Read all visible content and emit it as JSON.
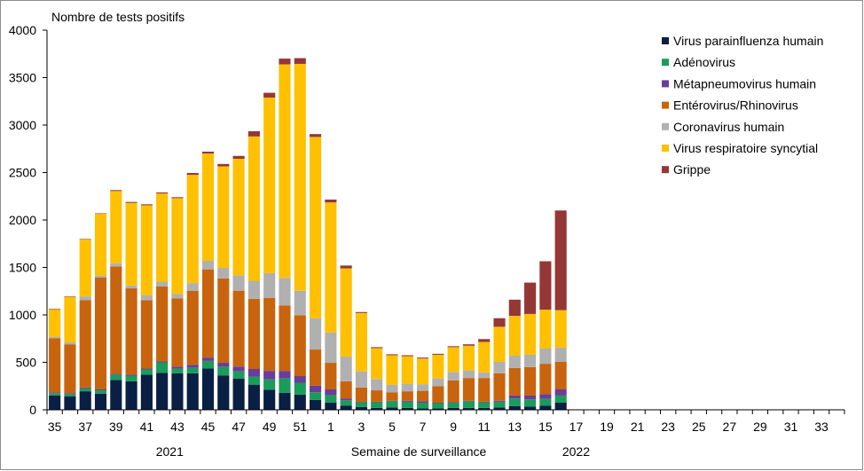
{
  "chart_data": {
    "type": "bar",
    "stacked": true,
    "ylabel": "Nombre de tests positifs",
    "xlabel": "Semaine de surveillance",
    "ylim": [
      0,
      4000
    ],
    "yticks": [
      "0",
      "500",
      "1000",
      "1500",
      "2000",
      "2500",
      "3000",
      "3500",
      "4000"
    ],
    "weeks": [
      "35",
      "36",
      "37",
      "38",
      "39",
      "40",
      "41",
      "42",
      "43",
      "44",
      "45",
      "46",
      "47",
      "48",
      "49",
      "50",
      "51",
      "52",
      "1",
      "2",
      "3",
      "4",
      "5",
      "6",
      "7",
      "8",
      "9",
      "10",
      "11",
      "12",
      "13",
      "14",
      "15",
      "16",
      "17",
      "18",
      "19",
      "20",
      "21",
      "22",
      "23",
      "24",
      "25",
      "26",
      "27",
      "28",
      "29",
      "30",
      "31",
      "32",
      "33",
      "34"
    ],
    "xtick_labels": [
      "35",
      "37",
      "39",
      "41",
      "43",
      "45",
      "47",
      "49",
      "51",
      "1",
      "3",
      "5",
      "7",
      "9",
      "11",
      "13",
      "15",
      "17",
      "19",
      "21",
      "23",
      "25",
      "27",
      "29",
      "31",
      "33"
    ],
    "year_labels": [
      {
        "text": "2021",
        "at_week_index": 7.5
      },
      {
        "text": "2022",
        "at_week_index": 34
      }
    ],
    "legend_position": "top-right",
    "grid": false,
    "series": [
      {
        "name": "Virus parainfluenza humain",
        "color": "#0a1f44",
        "values": [
          150,
          140,
          195,
          170,
          315,
          300,
          370,
          390,
          385,
          385,
          435,
          360,
          330,
          265,
          210,
          180,
          160,
          105,
          75,
          45,
          30,
          20,
          25,
          20,
          15,
          15,
          20,
          20,
          20,
          25,
          40,
          35,
          45,
          75
        ]
      },
      {
        "name": "Adénovirus",
        "color": "#1a9c5a",
        "values": [
          25,
          25,
          30,
          35,
          55,
          60,
          55,
          110,
          50,
          60,
          80,
          95,
          75,
          85,
          110,
          150,
          125,
          80,
          80,
          55,
          50,
          60,
          65,
          65,
          60,
          55,
          55,
          70,
          60,
          60,
          80,
          75,
          70,
          75
        ]
      },
      {
        "name": "Métapneumovirus humain",
        "color": "#6a3d9a",
        "values": [
          10,
          10,
          10,
          10,
          10,
          10,
          10,
          10,
          20,
          30,
          35,
          40,
          50,
          80,
          90,
          80,
          70,
          70,
          60,
          20,
          5,
          5,
          5,
          10,
          15,
          5,
          5,
          5,
          5,
          10,
          30,
          40,
          50,
          65
        ]
      },
      {
        "name": "Entérovirus/Rhinovirus",
        "color": "#c8640e",
        "values": [
          570,
          515,
          920,
          1180,
          1130,
          910,
          720,
          790,
          720,
          780,
          930,
          890,
          800,
          740,
          770,
          690,
          640,
          380,
          280,
          180,
          150,
          120,
          90,
          100,
          110,
          175,
          230,
          240,
          250,
          290,
          290,
          300,
          320,
          290
        ]
      },
      {
        "name": "Coronavirus humain",
        "color": "#b0b0b0",
        "values": [
          15,
          20,
          40,
          20,
          35,
          30,
          50,
          50,
          45,
          80,
          90,
          110,
          160,
          190,
          260,
          290,
          260,
          330,
          320,
          260,
          170,
          120,
          80,
          80,
          70,
          80,
          90,
          80,
          60,
          120,
          130,
          130,
          160,
          150
        ]
      },
      {
        "name": "Virus respiratoire syncytial",
        "color": "#ffc000",
        "values": [
          290,
          480,
          600,
          650,
          760,
          870,
          950,
          930,
          1010,
          1140,
          1130,
          1070,
          1230,
          1520,
          1850,
          2250,
          2390,
          1910,
          1370,
          930,
          615,
          325,
          310,
          290,
          270,
          250,
          260,
          260,
          320,
          370,
          420,
          430,
          410,
          395
        ]
      },
      {
        "name": "Grippe",
        "color": "#953735",
        "values": [
          5,
          5,
          5,
          5,
          10,
          10,
          10,
          10,
          10,
          20,
          20,
          25,
          30,
          55,
          50,
          60,
          60,
          30,
          30,
          30,
          10,
          10,
          10,
          10,
          10,
          10,
          10,
          15,
          30,
          90,
          170,
          330,
          510,
          1050
        ]
      }
    ]
  }
}
